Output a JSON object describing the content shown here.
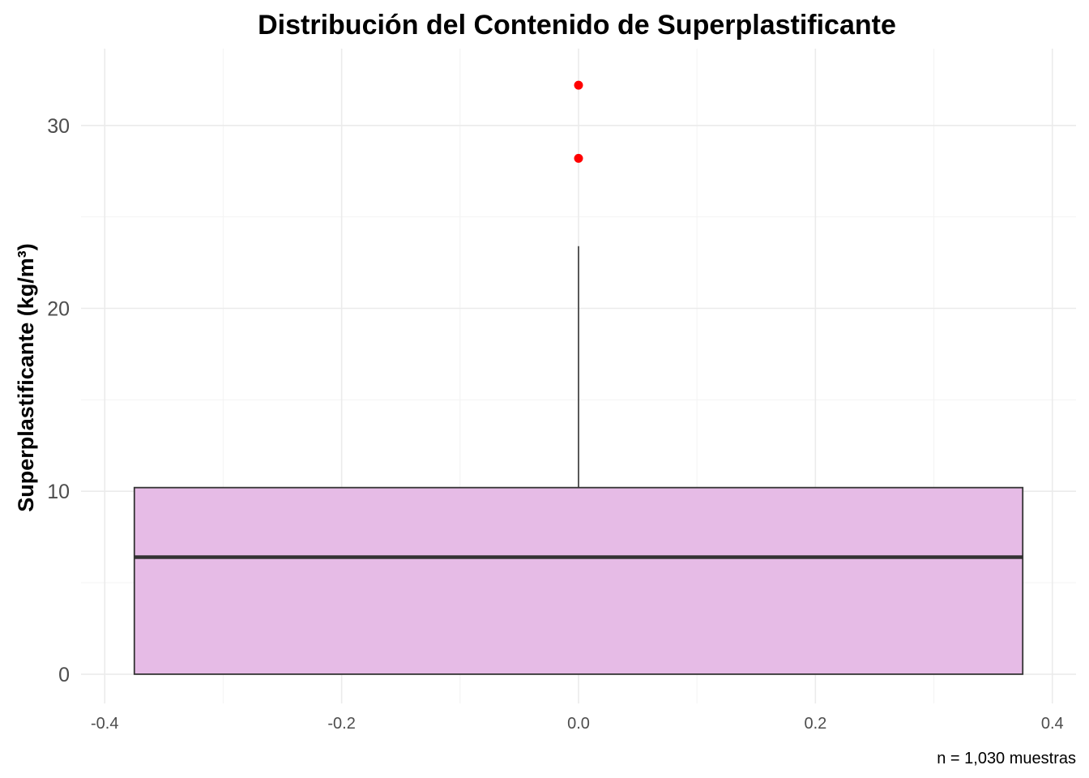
{
  "chart_data": {
    "type": "boxplot",
    "title": "Distribución del Contenido de Superplastificante",
    "xlabel": "",
    "ylabel": "Superplastificante (kg/m³)",
    "caption": "n = 1,030 muestras",
    "xlim": [
      -0.42,
      0.42
    ],
    "ylim": [
      -1.6,
      34.2
    ],
    "x_ticks": [
      -0.4,
      -0.2,
      0.0,
      0.2,
      0.4
    ],
    "x_tick_labels": [
      "-0.4",
      "-0.2",
      "0.0",
      "0.2",
      "0.4"
    ],
    "y_ticks": [
      0,
      10,
      20,
      30
    ],
    "y_tick_labels": [
      "0",
      "10",
      "20",
      "30"
    ],
    "grid": true,
    "box": {
      "x_center": 0.0,
      "x_min": -0.375,
      "x_max": 0.375,
      "lower_whisker": 0.0,
      "q1": 0.0,
      "median": 6.4,
      "q3": 10.2,
      "upper_whisker": 23.4
    },
    "outliers": [
      {
        "x": 0.0,
        "y": 28.2
      },
      {
        "x": 0.0,
        "y": 32.2
      }
    ],
    "colors": {
      "box_fill": "#e6bbe6",
      "box_stroke": "#333333",
      "median": "#333333",
      "outlier": "#ff0000",
      "grid": "#ebebeb"
    }
  }
}
